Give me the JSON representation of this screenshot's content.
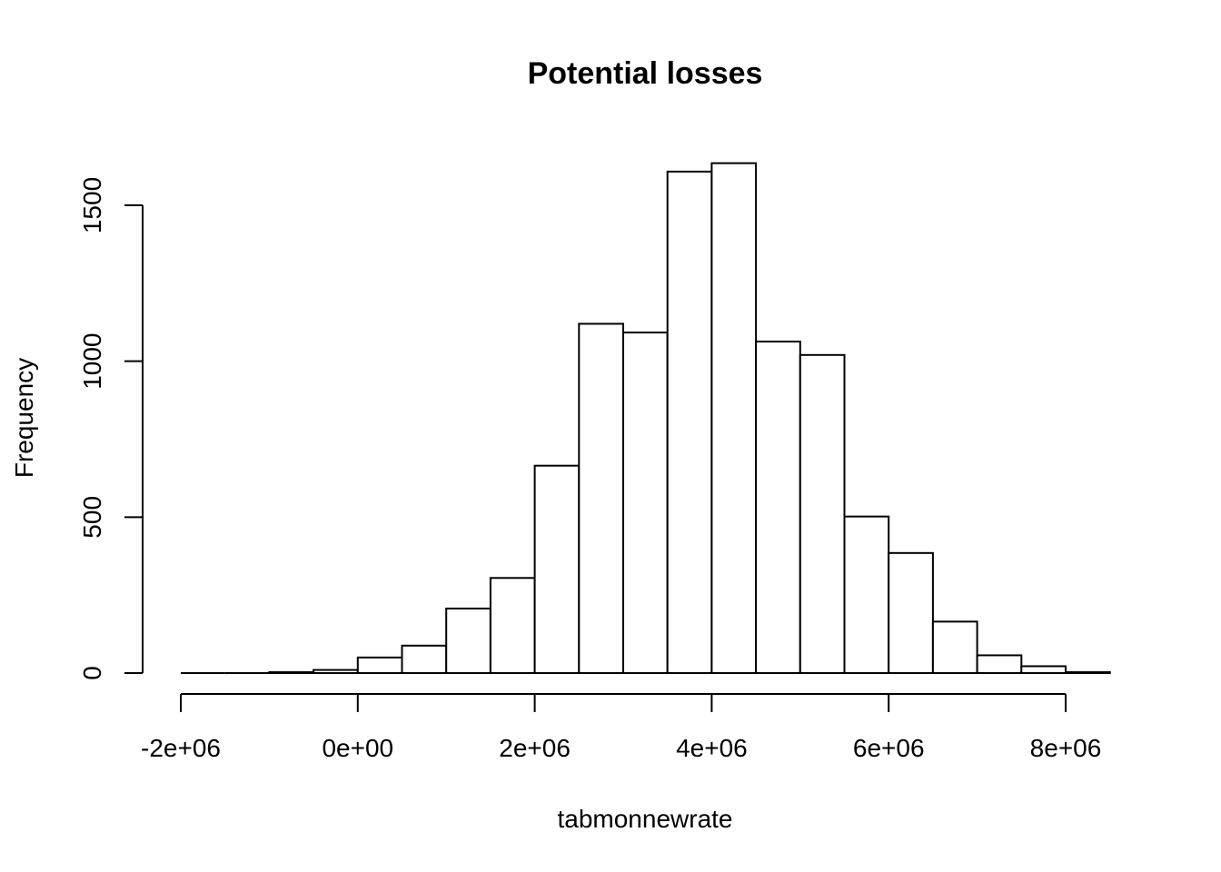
{
  "chart_data": {
    "type": "bar",
    "title": "Potential losses",
    "xlabel": "tabmonnewrate",
    "ylabel": "Frequency",
    "bin_width": 500000,
    "bins": [
      {
        "start": -2000000,
        "end": -1500000,
        "count": 0
      },
      {
        "start": -1500000,
        "end": -1000000,
        "count": 0
      },
      {
        "start": -1000000,
        "end": -500000,
        "count": 3
      },
      {
        "start": -500000,
        "end": 0,
        "count": 10
      },
      {
        "start": 0,
        "end": 500000,
        "count": 50
      },
      {
        "start": 500000,
        "end": 1000000,
        "count": 88
      },
      {
        "start": 1000000,
        "end": 1500000,
        "count": 207
      },
      {
        "start": 1500000,
        "end": 2000000,
        "count": 305
      },
      {
        "start": 2000000,
        "end": 2500000,
        "count": 665
      },
      {
        "start": 2500000,
        "end": 3000000,
        "count": 1120
      },
      {
        "start": 3000000,
        "end": 3500000,
        "count": 1092
      },
      {
        "start": 3500000,
        "end": 4000000,
        "count": 1608
      },
      {
        "start": 4000000,
        "end": 4500000,
        "count": 1635
      },
      {
        "start": 4500000,
        "end": 5000000,
        "count": 1063
      },
      {
        "start": 5000000,
        "end": 5500000,
        "count": 1020
      },
      {
        "start": 5500000,
        "end": 6000000,
        "count": 502
      },
      {
        "start": 6000000,
        "end": 6500000,
        "count": 385
      },
      {
        "start": 6500000,
        "end": 7000000,
        "count": 165
      },
      {
        "start": 7000000,
        "end": 7500000,
        "count": 57
      },
      {
        "start": 7500000,
        "end": 8000000,
        "count": 22
      },
      {
        "start": 8000000,
        "end": 8500000,
        "count": 3
      }
    ],
    "xlim": [
      -2000000,
      8500000
    ],
    "ylim": [
      0,
      1635
    ],
    "x_ticks": [
      {
        "value": -2000000,
        "label": "-2e+06"
      },
      {
        "value": 0,
        "label": "0e+00"
      },
      {
        "value": 2000000,
        "label": "2e+06"
      },
      {
        "value": 4000000,
        "label": "4e+06"
      },
      {
        "value": 6000000,
        "label": "6e+06"
      },
      {
        "value": 8000000,
        "label": "8e+06"
      }
    ],
    "y_ticks": [
      {
        "value": 0,
        "label": "0"
      },
      {
        "value": 500,
        "label": "500"
      },
      {
        "value": 1000,
        "label": "1000"
      },
      {
        "value": 1500,
        "label": "1500"
      }
    ],
    "grid": false,
    "legend": "none"
  }
}
